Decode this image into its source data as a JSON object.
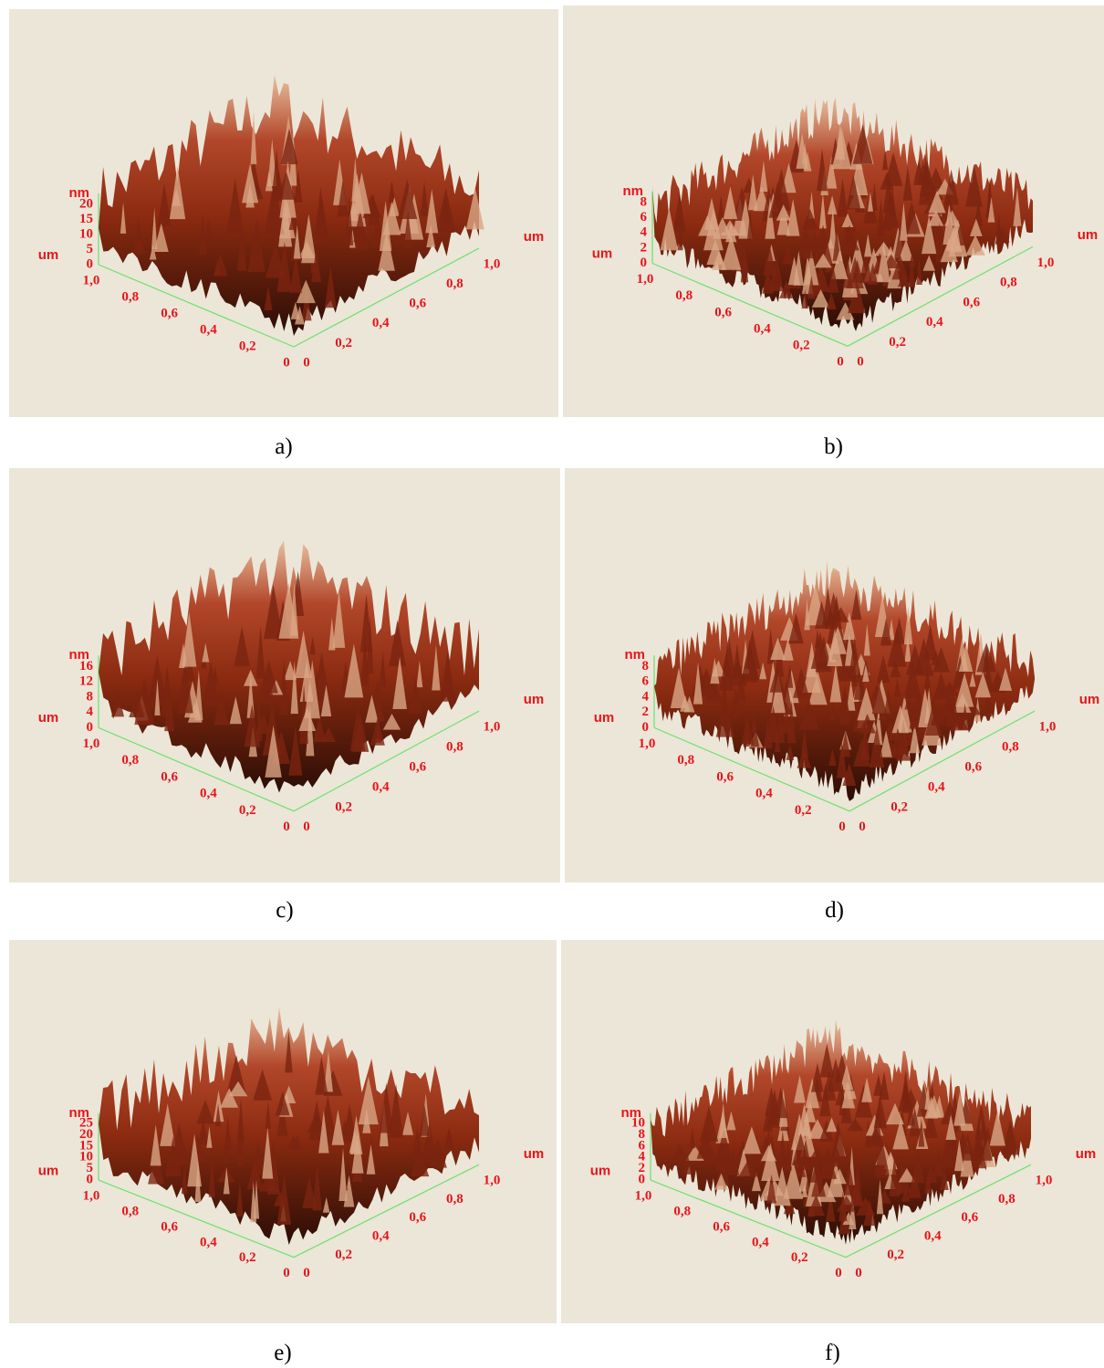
{
  "panels": [
    {
      "caption": "a)",
      "z_unit": "nm",
      "z_ticks": [
        "20",
        "15",
        "10",
        "5",
        "0"
      ],
      "x_unit": "um",
      "x_ticks": [
        "1,0",
        "0,8",
        "0,6",
        "0,4",
        "0,2",
        "0"
      ],
      "y_unit": "um",
      "y_ticks": [
        "0",
        "0,2",
        "0,4",
        "0,6",
        "0,8",
        "1,0"
      ]
    },
    {
      "caption": "b)",
      "z_unit": "nm",
      "z_ticks": [
        "8",
        "6",
        "4",
        "2",
        "0"
      ],
      "x_unit": "um",
      "x_ticks": [
        "1,0",
        "0,8",
        "0,6",
        "0,4",
        "0,2",
        "0"
      ],
      "y_unit": "um",
      "y_ticks": [
        "0",
        "0,2",
        "0,4",
        "0,6",
        "0,8",
        "1,0"
      ]
    },
    {
      "caption": "c)",
      "z_unit": "nm",
      "z_ticks": [
        "16",
        "12",
        "8",
        "4",
        "0"
      ],
      "x_unit": "um",
      "x_ticks": [
        "1,0",
        "0,8",
        "0,6",
        "0,4",
        "0,2",
        "0"
      ],
      "y_unit": "um",
      "y_ticks": [
        "0",
        "0,2",
        "0,4",
        "0,6",
        "0,8",
        "1,0"
      ]
    },
    {
      "caption": "d)",
      "z_unit": "nm",
      "z_ticks": [
        "8",
        "6",
        "4",
        "2",
        "0"
      ],
      "x_unit": "um",
      "x_ticks": [
        "1,0",
        "0,8",
        "0,6",
        "0,4",
        "0,2",
        "0"
      ],
      "y_unit": "um",
      "y_ticks": [
        "0",
        "0,2",
        "0,4",
        "0,6",
        "0,8",
        "1,0"
      ]
    },
    {
      "caption": "e)",
      "z_unit": "nm",
      "z_ticks": [
        "25",
        "20",
        "15",
        "10",
        "5",
        "0"
      ],
      "x_unit": "um",
      "x_ticks": [
        "1,0",
        "0,8",
        "0,6",
        "0,4",
        "0,2",
        "0"
      ],
      "y_unit": "um",
      "y_ticks": [
        "0",
        "0,2",
        "0,4",
        "0,6",
        "0,8",
        "1,0"
      ]
    },
    {
      "caption": "f)",
      "z_unit": "nm",
      "z_ticks": [
        "10",
        "8",
        "6",
        "4",
        "2",
        "0"
      ],
      "x_unit": "um",
      "x_ticks": [
        "1,0",
        "0,8",
        "0,6",
        "0,4",
        "0,2",
        "0"
      ],
      "y_unit": "um",
      "y_ticks": [
        "0",
        "0,2",
        "0,4",
        "0,6",
        "0,8",
        "1,0"
      ]
    }
  ]
}
